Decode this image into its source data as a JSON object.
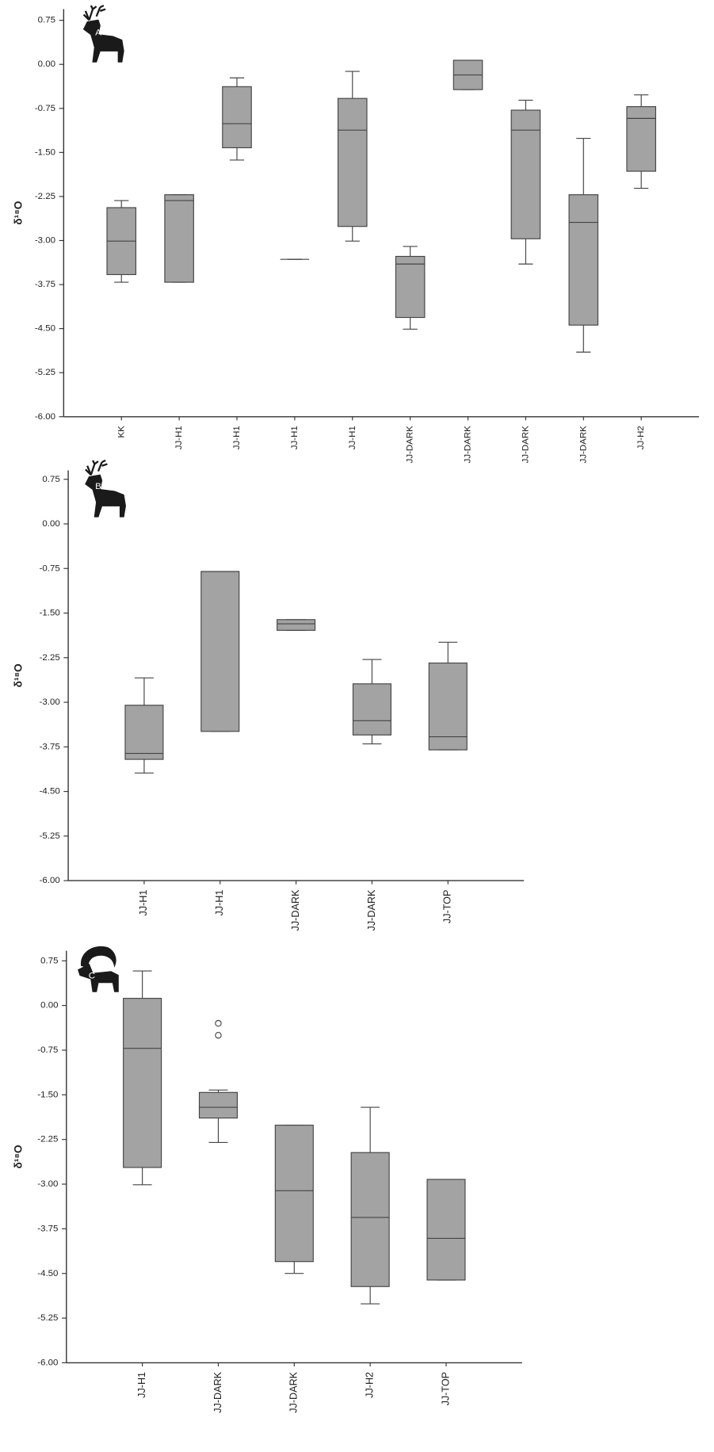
{
  "chart_data": [
    {
      "type": "box",
      "panel_label": "A",
      "y_label": "δ¹⁸O",
      "categories": [
        "KK",
        "JJ-H1",
        "JJ-H1",
        "JJ-H1",
        "JJ-H1",
        "JJ-DARK",
        "JJ-DARK",
        "JJ-DARK",
        "JJ-DARK",
        "JJ-H2"
      ],
      "boxes": [
        {
          "min": -3.71,
          "q1": -3.58,
          "median": -3.01,
          "q3": -2.44,
          "max": -2.32
        },
        {
          "min": -3.71,
          "q1": -3.71,
          "median": -2.32,
          "q3": -2.22,
          "max": -2.22
        },
        {
          "min": -1.63,
          "q1": -1.42,
          "median": -1.01,
          "q3": -0.38,
          "max": -0.23
        },
        {
          "min": -3.32,
          "q1": -3.32,
          "median": -3.32,
          "q3": -3.32,
          "max": -3.32
        },
        {
          "min": -3.01,
          "q1": -2.76,
          "median": -1.12,
          "q3": -0.58,
          "max": -0.12
        },
        {
          "min": -4.51,
          "q1": -4.31,
          "median": -3.4,
          "q3": -3.27,
          "max": -3.1
        },
        {
          "min": -0.43,
          "q1": -0.43,
          "median": -0.18,
          "q3": 0.07,
          "max": 0.07
        },
        {
          "min": -3.4,
          "q1": -2.97,
          "median": -1.12,
          "q3": -0.78,
          "max": -0.61
        },
        {
          "min": -4.9,
          "q1": -4.44,
          "median": -2.69,
          "q3": -2.22,
          "max": -1.26
        },
        {
          "min": -2.11,
          "q1": -1.82,
          "median": -0.92,
          "q3": -0.72,
          "max": -0.52
        }
      ],
      "color": "#a3a3a3",
      "ylim": [
        -6,
        0.94
      ],
      "yticks": [
        0.75,
        {
          "value": 0,
          "label": "0.00"
        },
        -0.75,
        {
          "value": -1.5,
          "label": "-1.50"
        },
        -2.25,
        {
          "value": -3,
          "label": "-3.00"
        },
        -3.75,
        {
          "value": -4.5,
          "label": "-4.50"
        },
        -5.25,
        {
          "value": -6,
          "label": "-6.00"
        }
      ]
    },
    {
      "type": "box",
      "panel_label": "B",
      "y_label": "δ¹⁸O",
      "categories": [
        "JJ-H1",
        "JJ-H1",
        "JJ-DARK",
        "JJ-DARK",
        "JJ-TOP"
      ],
      "boxes": [
        {
          "min": -4.19,
          "q1": -3.96,
          "median": -3.86,
          "q3": -3.05,
          "max": -2.59
        },
        {
          "min": -3.49,
          "q1": -3.49,
          "median": -0.8,
          "q3": -0.8,
          "max": -0.8
        },
        {
          "min": -1.79,
          "q1": -1.79,
          "median": -1.68,
          "q3": -1.61,
          "max": -1.61
        },
        {
          "min": -3.7,
          "q1": -3.55,
          "median": -3.31,
          "q3": -2.69,
          "max": -2.28
        },
        {
          "min": -3.8,
          "q1": -3.8,
          "median": -3.58,
          "q3": -2.34,
          "max": -1.99
        }
      ],
      "color": "#a3a3a3",
      "ylim": [
        -6,
        0.9
      ],
      "yticks": [
        0.75,
        {
          "value": 0,
          "label": "0.00"
        },
        -0.75,
        {
          "value": -1.5,
          "label": "-1.50"
        },
        -2.25,
        {
          "value": -3,
          "label": "-3.00"
        },
        -3.75,
        {
          "value": -4.5,
          "label": "-4.50"
        },
        -5.25,
        {
          "value": -6,
          "label": "-6.00"
        }
      ]
    },
    {
      "type": "box",
      "panel_label": "C",
      "y_label": "δ¹⁸O",
      "categories": [
        "JJ-H1",
        "JJ-DARK",
        "JJ-DARK",
        "JJ-H2",
        "JJ-TOP"
      ],
      "boxes": [
        {
          "min": -3.01,
          "q1": -2.72,
          "median": -0.72,
          "q3": 0.12,
          "max": 0.58
        },
        {
          "min": -2.3,
          "q1": -1.89,
          "median": -1.71,
          "q3": -1.46,
          "max": -1.42,
          "outliers": [
            -0.3,
            -0.5
          ]
        },
        {
          "min": -4.5,
          "q1": -4.3,
          "median": -3.11,
          "q3": -2.01,
          "max": -2.01
        },
        {
          "min": -5.01,
          "q1": -4.72,
          "median": -3.56,
          "q3": -2.47,
          "max": -1.71
        },
        {
          "min": -4.61,
          "q1": -4.61,
          "median": -3.91,
          "q3": -2.92,
          "max": -2.92
        }
      ],
      "color": "#a3a3a3",
      "ylim": [
        -6,
        0.92
      ],
      "yticks": [
        0.75,
        {
          "value": 0,
          "label": "0.00"
        },
        -0.75,
        {
          "value": -1.5,
          "label": "-1.50"
        },
        -2.25,
        {
          "value": -3,
          "label": "-3.00"
        },
        -3.75,
        {
          "value": -4.5,
          "label": "-4.50"
        },
        -5.25,
        {
          "value": -6,
          "label": "-6.00"
        }
      ]
    }
  ]
}
